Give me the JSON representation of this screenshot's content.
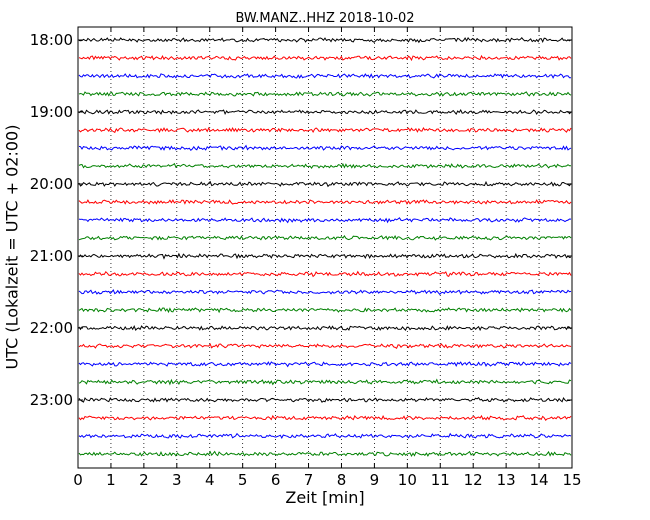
{
  "chart_data": {
    "type": "line",
    "title": "BW.MANZ..HHZ 2018-10-02",
    "xlabel": "Zeit  [min]",
    "ylabel": "UTC (Lokalzeit = UTC + 02:00)",
    "xlim": [
      0,
      15
    ],
    "x_ticks": [
      0,
      1,
      2,
      3,
      4,
      5,
      6,
      7,
      8,
      9,
      10,
      11,
      12,
      13,
      14,
      15
    ],
    "x_tick_labels": [
      "0",
      "1",
      "2",
      "3",
      "4",
      "5",
      "6",
      "7",
      "8",
      "9",
      "10",
      "11",
      "12",
      "13",
      "14",
      "15"
    ],
    "y_tick_labels": [
      "18:00",
      "19:00",
      "20:00",
      "21:00",
      "22:00",
      "23:00"
    ],
    "trace_interval_minutes": 15,
    "start_time": "18:00",
    "end_time": "24:00",
    "trace_colors": [
      "#000000",
      "#ff0000",
      "#0000ff",
      "#008000"
    ],
    "x_grid": "dotted vertical lines at each minute",
    "series_type": "seismogram helicorder traces (low-amplitude noise)"
  }
}
